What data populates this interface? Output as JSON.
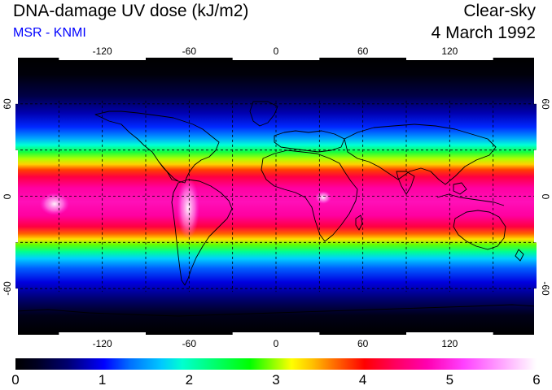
{
  "header": {
    "title": "DNA-damage UV dose (kJ/m2)",
    "source": "MSR - KNMI",
    "condition": "Clear-sky",
    "date": "4 March 1992"
  },
  "map": {
    "projection": "equirectangular",
    "lon_range": [
      -180,
      180
    ],
    "lat_range": [
      -90,
      90
    ],
    "lon_ticks": [
      {
        "value": -120,
        "label": "-120"
      },
      {
        "value": -60,
        "label": "-60"
      },
      {
        "value": 0,
        "label": "0"
      },
      {
        "value": 60,
        "label": "60"
      },
      {
        "value": 120,
        "label": "120"
      }
    ],
    "lat_ticks": [
      {
        "value": 60,
        "label": "60"
      },
      {
        "value": 0,
        "label": "0"
      },
      {
        "value": -60,
        "label": "-60"
      }
    ],
    "graticule_lons": [
      -150,
      -120,
      -90,
      -60,
      -30,
      0,
      30,
      60,
      90,
      120,
      150
    ],
    "graticule_lats": [
      -60,
      -30,
      0,
      30,
      60
    ],
    "grid": "dashed",
    "coastlines": true
  },
  "colorbar": {
    "min": 0,
    "max": 6,
    "ticks": [
      "0",
      "1",
      "2",
      "3",
      "4",
      "5",
      "6"
    ]
  },
  "colors": {
    "background": "#000000",
    "high": "#ff00a0",
    "peak": "#ffffff",
    "mid": "#00ff00",
    "low": "#0000ff",
    "source_text": "#0000ff"
  }
}
